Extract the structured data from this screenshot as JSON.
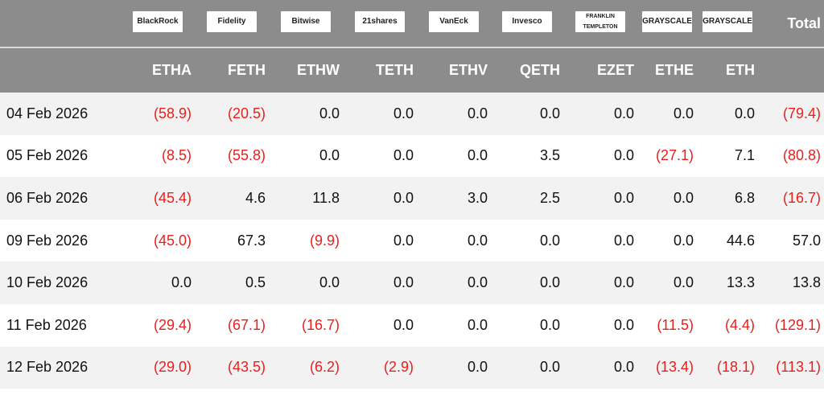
{
  "header": {
    "logos": [
      "BlackRock",
      "Fidelity",
      "Bitwise",
      "21shares",
      "VanEck",
      "Invesco",
      "FRANKLIN TEMPLETON",
      "GRAYSCALE",
      "GRAYSCALE"
    ],
    "total": "Total",
    "tickers": [
      "ETHA",
      "FETH",
      "ETHW",
      "TETH",
      "ETHV",
      "QETH",
      "EZET",
      "ETHE",
      "ETH"
    ]
  },
  "table": {
    "rows": [
      {
        "date": "04 Feb 2026",
        "values": [
          "(58.9)",
          "(20.5)",
          "0.0",
          "0.0",
          "0.0",
          "0.0",
          "0.0",
          "0.0",
          "0.0",
          "(79.4)"
        ]
      },
      {
        "date": "05 Feb 2026",
        "values": [
          "(8.5)",
          "(55.8)",
          "0.0",
          "0.0",
          "0.0",
          "3.5",
          "0.0",
          "(27.1)",
          "7.1",
          "(80.8)"
        ]
      },
      {
        "date": "06 Feb 2026",
        "values": [
          "(45.4)",
          "4.6",
          "11.8",
          "0.0",
          "3.0",
          "2.5",
          "0.0",
          "0.0",
          "6.8",
          "(16.7)"
        ]
      },
      {
        "date": "09 Feb 2026",
        "values": [
          "(45.0)",
          "67.3",
          "(9.9)",
          "0.0",
          "0.0",
          "0.0",
          "0.0",
          "0.0",
          "44.6",
          "57.0"
        ]
      },
      {
        "date": "10 Feb 2026",
        "values": [
          "0.0",
          "0.5",
          "0.0",
          "0.0",
          "0.0",
          "0.0",
          "0.0",
          "0.0",
          "13.3",
          "13.8"
        ]
      },
      {
        "date": "11 Feb 2026",
        "values": [
          "(29.4)",
          "(67.1)",
          "(16.7)",
          "0.0",
          "0.0",
          "0.0",
          "0.0",
          "(11.5)",
          "(4.4)",
          "(129.1)"
        ]
      },
      {
        "date": "12 Feb 2026",
        "values": [
          "(29.0)",
          "(43.5)",
          "(6.2)",
          "(2.9)",
          "0.0",
          "0.0",
          "0.0",
          "(13.4)",
          "(18.1)",
          "(113.1)"
        ]
      }
    ]
  }
}
